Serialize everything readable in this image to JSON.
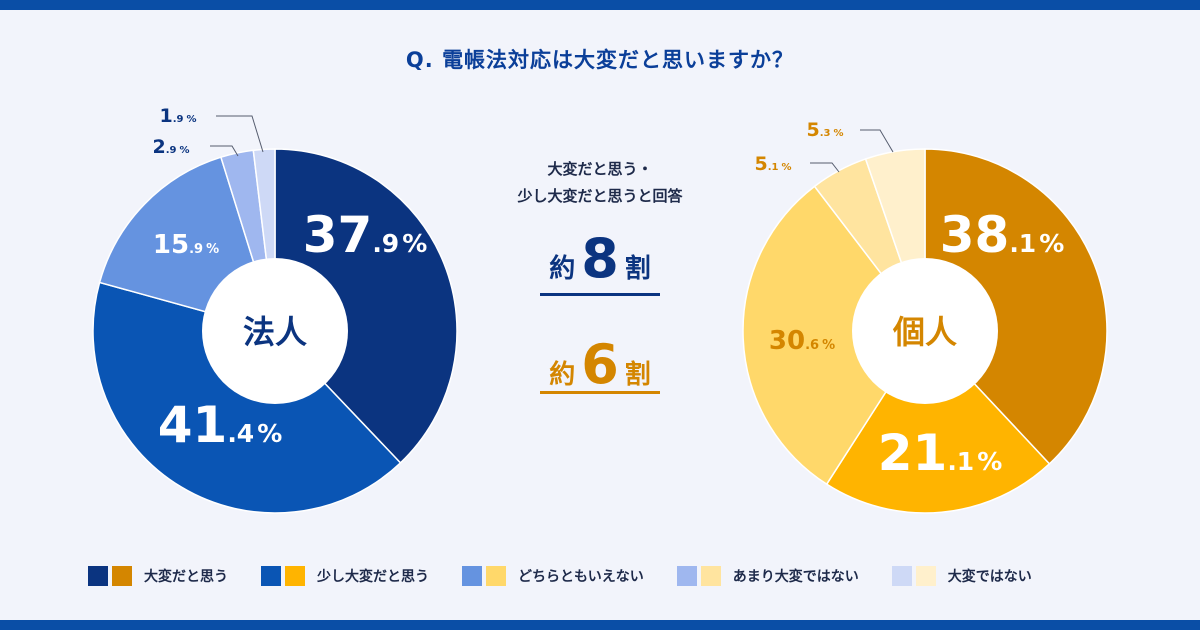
{
  "title": "Q. 電帳法対応は大変だと思いますか？",
  "summary": {
    "label_line1": "大変だと思う・",
    "label_line2": "少し大変だと思うと回答",
    "corporate": {
      "prefix": "約",
      "value": "8",
      "suffix": "割"
    },
    "individual": {
      "prefix": "約",
      "value": "6",
      "suffix": "割"
    }
  },
  "legend": [
    {
      "label": "大変だと思う",
      "colors": [
        "#0b3480",
        "#d48600"
      ]
    },
    {
      "label": "少し大変だと思う",
      "colors": [
        "#0a55b4",
        "#ffb400"
      ]
    },
    {
      "label": "どちらともいえない",
      "colors": [
        "#6593e0",
        "#ffd86a"
      ]
    },
    {
      "label": "あまり大変ではない",
      "colors": [
        "#9fb7ef",
        "#ffe49f"
      ]
    },
    {
      "label": "大変ではない",
      "colors": [
        "#ced9f6",
        "#fff0cc"
      ]
    }
  ],
  "chart_data": [
    {
      "type": "pie",
      "title": "法人",
      "categories": [
        "大変だと思う",
        "少し大変だと思う",
        "どちらともいえない",
        "あまり大変ではない",
        "大変ではない"
      ],
      "values": [
        37.9,
        41.4,
        15.9,
        2.9,
        1.9
      ],
      "labels": [
        {
          "int": "37",
          "dec": ".9",
          "pct": "%"
        },
        {
          "int": "41",
          "dec": ".4",
          "pct": "%"
        },
        {
          "int": "15",
          "dec": ".9",
          "pct": "%"
        },
        {
          "int": "2",
          "dec": ".9",
          "pct": "%"
        },
        {
          "int": "1",
          "dec": ".9",
          "pct": "%"
        }
      ],
      "colors": [
        "#0b3480",
        "#0a55b4",
        "#6593e0",
        "#9fb7ef",
        "#ced9f6"
      ],
      "label_colors": [
        "#ffffff",
        "#ffffff",
        "#ffffff",
        "#0b3480",
        "#0b3480"
      ],
      "center_color": "#0b3480"
    },
    {
      "type": "pie",
      "title": "個人",
      "categories": [
        "大変だと思う",
        "少し大変だと思う",
        "どちらともいえない",
        "あまり大変ではない",
        "大変ではない"
      ],
      "values": [
        38.1,
        21.1,
        30.6,
        5.1,
        5.3
      ],
      "labels": [
        {
          "int": "38",
          "dec": ".1",
          "pct": "%"
        },
        {
          "int": "21",
          "dec": ".1",
          "pct": "%"
        },
        {
          "int": "30",
          "dec": ".6",
          "pct": "%"
        },
        {
          "int": "5",
          "dec": ".1",
          "pct": "%"
        },
        {
          "int": "5",
          "dec": ".3",
          "pct": "%"
        }
      ],
      "colors": [
        "#d48600",
        "#ffb400",
        "#ffd86a",
        "#ffe49f",
        "#fff0cc"
      ],
      "label_colors": [
        "#ffffff",
        "#ffffff",
        "#d48600",
        "#d48600",
        "#d48600"
      ],
      "center_color": "#d48600"
    }
  ]
}
